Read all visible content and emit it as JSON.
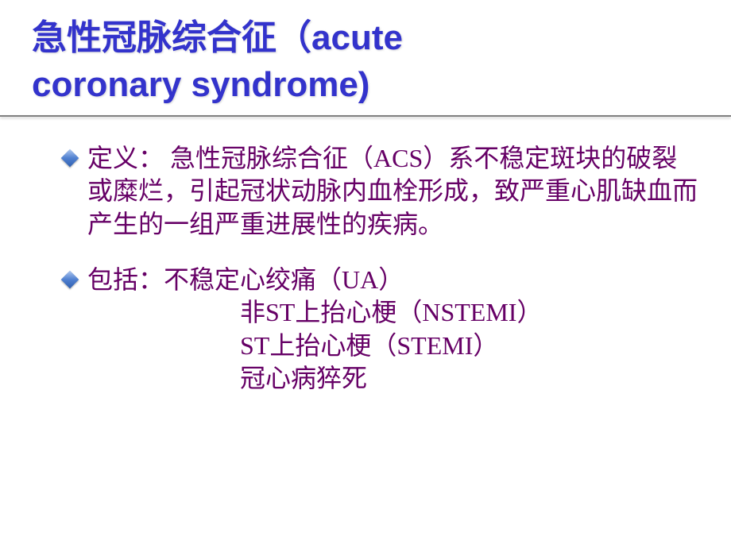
{
  "title": {
    "line1": "急性冠脉综合征（acute",
    "line2": "coronary syndrome)",
    "color": "#3333cc",
    "fontsize": 44
  },
  "bullets": [
    {
      "text": "定义：  急性冠脉综合征（ACS）系不稳定斑块的破裂或糜烂，引起冠状动脉内血栓形成，致严重心肌缺血而产生的一组严重进展性的疾病。"
    },
    {
      "text": "包括：不稳定心绞痛（UA）",
      "sublines": [
        "非ST上抬心梗（NSTEMI）",
        "ST上抬心梗（STEMI）",
        "冠心病猝死"
      ]
    }
  ],
  "styling": {
    "body_color": "#660066",
    "body_fontsize": 32,
    "background_color": "#ffffff",
    "bullet_marker_color": "#5080d0",
    "underline_color": "#808080"
  }
}
